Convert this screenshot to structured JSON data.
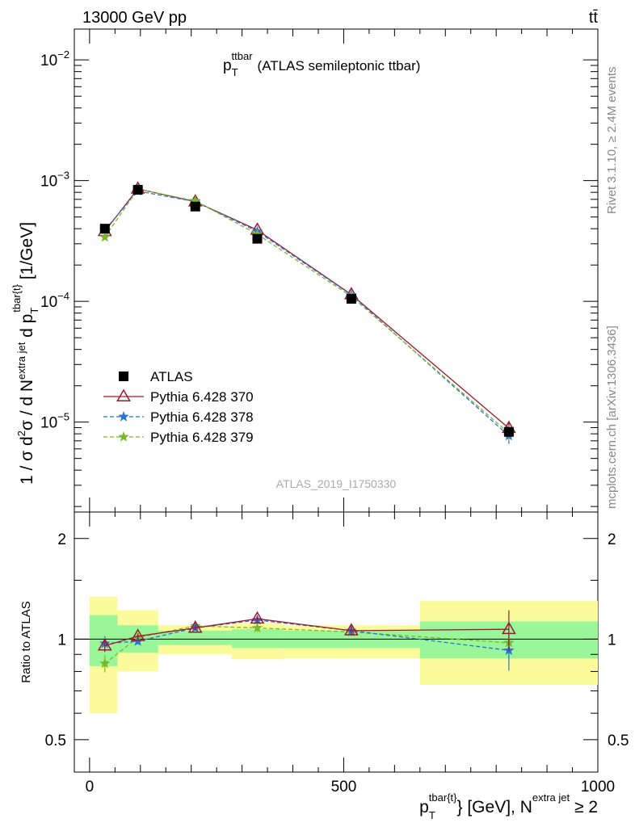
{
  "header": {
    "left": "13000 GeV pp",
    "right": "tt̄"
  },
  "side": {
    "rivet": "Rivet 3.1.10, ≥ 2.4M events",
    "mcplots": "mcplots.cern.ch [arXiv:1306.3436]"
  },
  "colors": {
    "data": "#000000",
    "p370": "#a01830",
    "p378": "#2a74d8",
    "p379": "#7ab82a",
    "band_inner": "#99f799",
    "band_outer": "#fbfb9c"
  },
  "chart_data": [
    {
      "type": "line",
      "title_sup": "ttbar",
      "title_sub": "T",
      "title_rest": "(ATLAS semileptonic ttbar)",
      "watermark": "ATLAS_2019_I1750330",
      "ylabel_part1": "1 / σ d",
      "ylabel_sup1": "2",
      "ylabel_part2": "σ / d N",
      "ylabel_sup2": "extra jet",
      "ylabel_part3": " d p",
      "ylabel_sub3": "T",
      "ylabel_sup3": "tbar{t}",
      "ylabel_part4": " [1/GeV]",
      "xlabel_part1": "p",
      "xlabel_sub1": "T",
      "xlabel_sup1": "tbar{t}",
      "xlabel_part2": "} [GeV], N",
      "xlabel_sup2": "extra jet",
      "xlabel_part3": " ≥ 2",
      "xlim": [
        -30,
        1000
      ],
      "ylim": [
        1.8e-06,
        0.018
      ],
      "yscale": "log",
      "y_ticks": [
        {
          "value": 1e-05,
          "mant": "10",
          "exp": "−5"
        },
        {
          "value": 0.0001,
          "mant": "10",
          "exp": "−4"
        },
        {
          "value": 0.001,
          "mant": "10",
          "exp": "−3"
        },
        {
          "value": 0.01,
          "mant": "10",
          "exp": "−2"
        }
      ],
      "x": [
        30,
        95,
        208,
        330,
        515,
        825
      ],
      "legend_position": "lower-left",
      "series": [
        {
          "name": "ATLAS",
          "marker": "square",
          "color": "#000000",
          "values": [
            0.0004,
            0.00084,
            0.00061,
            0.00033,
            0.000105,
            8.3e-06
          ],
          "err": [
            2e-05,
            3e-05,
            2e-05,
            2e-05,
            5e-06,
            5e-07
          ]
        },
        {
          "name": "Pythia 6.428 370",
          "marker": "triangle-open",
          "color": "#a01830",
          "dash": "",
          "values": [
            0.00038,
            0.000855,
            0.00067,
            0.00039,
            0.000114,
            8.9e-06
          ],
          "err": [
            1e-05,
            1e-05,
            1e-05,
            1e-05,
            3e-06,
            1.3e-06
          ]
        },
        {
          "name": "Pythia 6.428 378",
          "marker": "star",
          "color": "#2a74d8",
          "dash": "5,3",
          "values": [
            0.00039,
            0.00082,
            0.00067,
            0.00038,
            0.000113,
            7.7e-06
          ],
          "err": [
            1e-05,
            1e-05,
            1e-05,
            1e-05,
            3e-06,
            1.1e-06
          ]
        },
        {
          "name": "Pythia 6.428 379",
          "marker": "star",
          "color": "#7ab82a",
          "dash": "5,3",
          "values": [
            0.00034,
            0.00085,
            0.00068,
            0.00036,
            0.00011,
            8.1e-06
          ],
          "err": [
            1e-05,
            1e-05,
            1e-05,
            1e-05,
            3e-06,
            1.1e-06
          ]
        }
      ],
      "x_ticks": [
        0,
        500,
        1000
      ]
    },
    {
      "type": "line",
      "ylabel": "Ratio to ATLAS",
      "yscale": "log",
      "ylim": [
        0.4,
        2.4
      ],
      "xlim": [
        -30,
        1000
      ],
      "y_ticks": [
        {
          "value": 0.5,
          "label": "0.5"
        },
        {
          "value": 1,
          "label": "1"
        },
        {
          "value": 2,
          "label": "2"
        }
      ],
      "x_ticks": [
        {
          "value": 0,
          "label": "0"
        },
        {
          "value": 500,
          "label": "500"
        },
        {
          "value": 1000,
          "label": "1000"
        }
      ],
      "bins": [
        {
          "lo": 0,
          "hi": 55,
          "inner": [
            0.83,
            1.18
          ],
          "outer": [
            0.6,
            1.34
          ]
        },
        {
          "lo": 55,
          "hi": 135,
          "inner": [
            0.91,
            1.1
          ],
          "outer": [
            0.8,
            1.22
          ]
        },
        {
          "lo": 135,
          "hi": 280,
          "inner": [
            0.96,
            1.06
          ],
          "outer": [
            0.9,
            1.1
          ]
        },
        {
          "lo": 280,
          "hi": 380,
          "inner": [
            0.94,
            1.07
          ],
          "outer": [
            0.87,
            1.12
          ]
        },
        {
          "lo": 380,
          "hi": 650,
          "inner": [
            0.94,
            1.06
          ],
          "outer": [
            0.875,
            1.1
          ]
        },
        {
          "lo": 650,
          "hi": 1000,
          "inner": [
            0.875,
            1.13
          ],
          "outer": [
            0.73,
            1.3
          ]
        }
      ],
      "x": [
        30,
        95,
        208,
        330,
        515,
        825
      ],
      "series": [
        {
          "name": "Pythia 6.428 370",
          "values": [
            0.955,
            1.02,
            1.08,
            1.15,
            1.06,
            1.07
          ],
          "err": [
            0.04,
            0.02,
            0.02,
            0.025,
            0.03,
            0.15
          ]
        },
        {
          "name": "Pythia 6.428 378",
          "values": [
            0.97,
            0.985,
            1.08,
            1.14,
            1.06,
            0.925
          ],
          "err": [
            0.05,
            0.02,
            0.02,
            0.03,
            0.03,
            0.12
          ]
        },
        {
          "name": "Pythia 6.428 379",
          "values": [
            0.845,
            1.01,
            1.095,
            1.08,
            1.05,
            0.975
          ],
          "err": [
            0.05,
            0.02,
            0.02,
            0.03,
            0.03,
            0.12
          ]
        }
      ]
    }
  ]
}
